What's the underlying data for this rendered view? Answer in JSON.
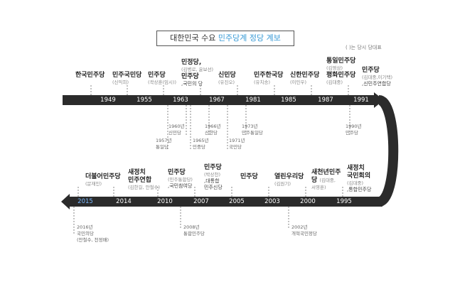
{
  "title": {
    "prefix": "대한민국 수요 ",
    "accent": "민주당계 정당 계보"
  },
  "legend": "( )는 당시 당대표",
  "timeline_top": {
    "years": [
      "1949",
      "1955",
      "1963",
      "1967",
      "1981",
      "1985",
      "1987",
      "1991"
    ]
  },
  "timeline_bottom": {
    "years": [
      "2015",
      "2014",
      "2010",
      "2007",
      "2005",
      "2003",
      "2000",
      "1995"
    ]
  },
  "top_parties": [
    {
      "name": "한국민주당",
      "sub": ""
    },
    {
      "name": "민주국민당",
      "sub": "(신익희)"
    },
    {
      "name": "민주당",
      "sub": "(곽상훈(임시))"
    },
    {
      "name": "민정당,",
      "sub": "(김병로, 윤보선)",
      "name2": "민주당",
      "sub2": ",국민의 당"
    },
    {
      "name": "신민당",
      "sub": "(유진오)"
    },
    {
      "name": "민주한국당",
      "sub": "(유치송)"
    },
    {
      "name": "신한민주당",
      "sub": "(이민우)"
    },
    {
      "name": "통일민주당",
      "sub": "(김영삼)",
      "name2": "평화민주당",
      "sub2": "(김대중)"
    },
    {
      "name": "민주당",
      "sub": "(김대중,이기택)",
      "sub2": ",신민주연합당"
    }
  ],
  "top_notes": [
    {
      "year": "1960년",
      "name": "신민당"
    },
    {
      "year": "1957년",
      "name": "통일당"
    },
    {
      "year": "1966년",
      "name": "신한당"
    },
    {
      "year": "1965년",
      "name": "민중당"
    },
    {
      "year": "1973년",
      "name": "민주통일당"
    },
    {
      "year": "1971년",
      "name": "국민당"
    },
    {
      "year": "1990년",
      "name": "민주당"
    }
  ],
  "bottom_parties": [
    {
      "name": "더불어민주당",
      "sub": "(문재인)"
    },
    {
      "name": "새정치",
      "name2": "민주연합",
      "sub": "(김한길, 안철수)"
    },
    {
      "name": "민주당",
      "sub": "(민주통합당)",
      "sub2": ",국민참여당"
    },
    {
      "name": "민주당",
      "sub": "(박상천)",
      "sub2": ",대통합",
      "sub3": "민주신당"
    },
    {
      "name": "민주당",
      "sub": ""
    },
    {
      "name": "열린우리당",
      "sub": "(김원기)"
    },
    {
      "name": "새천년민주",
      "name2": "당",
      "sub": "(김대중,",
      "sub2": "서영훈)"
    },
    {
      "name": "새정치",
      "name2": "국민회의",
      "sub": "(김대중)",
      "sub2": ",통합민주당"
    }
  ],
  "bottom_notes": [
    {
      "year": "2016년",
      "name": "국민의당",
      "sub": "(안철수, 천정배)"
    },
    {
      "year": "2008년",
      "name": "통합민주당"
    },
    {
      "year": "2002년",
      "name": "개혁국민정당"
    }
  ]
}
